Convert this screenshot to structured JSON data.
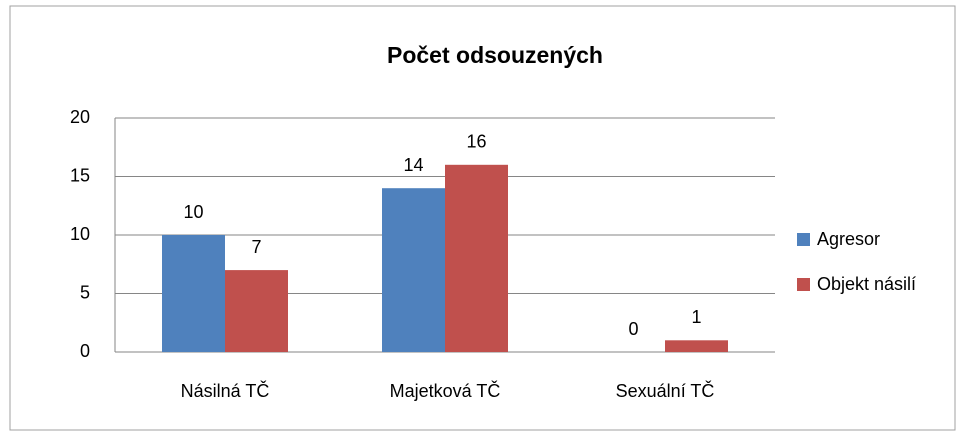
{
  "chart_data": {
    "type": "bar",
    "title": "Počet odsouzených",
    "categories": [
      "Násilná TČ",
      "Majetková TČ",
      "Sexuální TČ"
    ],
    "series": [
      {
        "name": "Agresor",
        "color": "#4f81bd",
        "values": [
          10,
          14,
          0
        ]
      },
      {
        "name": "Objekt násilí",
        "color": "#c0504d",
        "values": [
          7,
          16,
          1
        ]
      }
    ],
    "ylim": [
      0,
      20
    ],
    "yticks": [
      0,
      5,
      10,
      15,
      20
    ],
    "grid": true,
    "legend": "right"
  }
}
